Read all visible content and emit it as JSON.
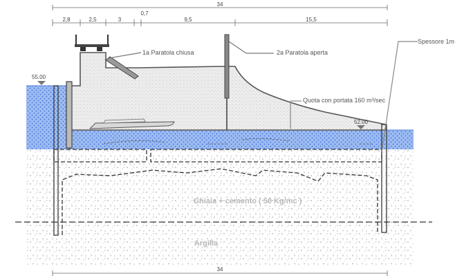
{
  "dimensions": {
    "total_top": "34",
    "total_bottom": "34",
    "segments": [
      "2,8",
      "2,5",
      "3",
      "0,7",
      "9,5",
      "15,5"
    ]
  },
  "labels": {
    "gate_closed": "1a Paratola chiusa",
    "gate_open": "2a Paratola aperta",
    "thickness": "Spessore 1m",
    "flow_level": "Quota con portata 160 m³/sec",
    "elev_upstream": "55.00",
    "elev_downstream": "52.00",
    "grout": "Ghiaia + cemento ( 50 Kg/mc )",
    "clay": "Argilla"
  },
  "colors": {
    "water": "#8fb3ef",
    "water_line": "#4a78d8",
    "concrete": "#ececec",
    "outline": "#555555",
    "soil": "#ffffff"
  }
}
